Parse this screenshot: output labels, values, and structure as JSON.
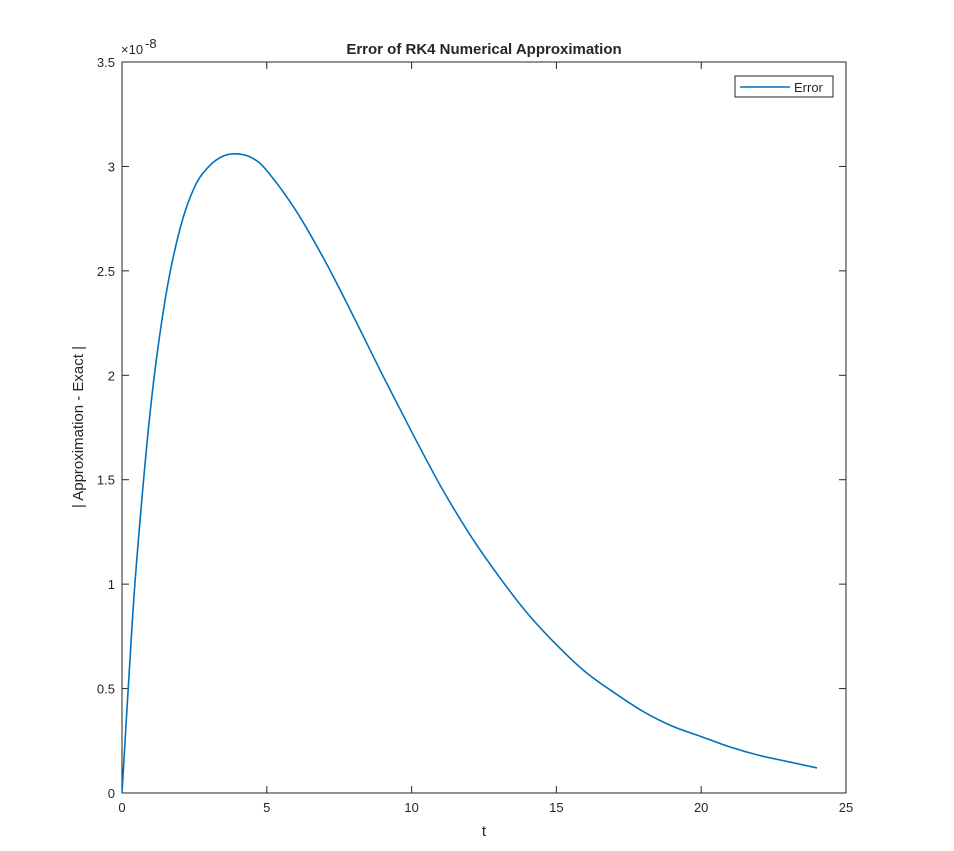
{
  "chart_data": {
    "type": "line",
    "title": "Error of RK4 Numerical Approximation",
    "xlabel": "t",
    "ylabel": "| Approximation - Exact |",
    "y_multiplier_base": "×10",
    "y_multiplier_exp": "-8",
    "xlim": [
      0,
      25
    ],
    "ylim": [
      0,
      3.5
    ],
    "x_ticks": [
      0,
      5,
      10,
      15,
      20,
      25
    ],
    "y_ticks": [
      0,
      0.5,
      1,
      1.5,
      2,
      2.5,
      3,
      3.5
    ],
    "x_tick_labels": [
      "0",
      "5",
      "10",
      "15",
      "20",
      "25"
    ],
    "y_tick_labels": [
      "0",
      "0.5",
      "1",
      "1.5",
      "2",
      "2.5",
      "3",
      "3.5"
    ],
    "grid": false,
    "legend_position": "top-right",
    "series": [
      {
        "name": "Error",
        "color": "#0072BD",
        "x": [
          0,
          0.25,
          0.5,
          1,
          1.5,
          2,
          2.5,
          3,
          3.5,
          4,
          4.5,
          5,
          6,
          7,
          8,
          9,
          10,
          11,
          12,
          13,
          14,
          15,
          16,
          17,
          18,
          19,
          20,
          21,
          22,
          23,
          24
        ],
        "y": [
          0,
          0.58,
          1.1,
          1.86,
          2.37,
          2.7,
          2.9,
          3.0,
          3.05,
          3.06,
          3.04,
          2.98,
          2.79,
          2.55,
          2.28,
          2.0,
          1.73,
          1.47,
          1.24,
          1.04,
          0.86,
          0.71,
          0.58,
          0.48,
          0.39,
          0.32,
          0.27,
          0.22,
          0.18,
          0.15,
          0.12
        ]
      }
    ]
  }
}
